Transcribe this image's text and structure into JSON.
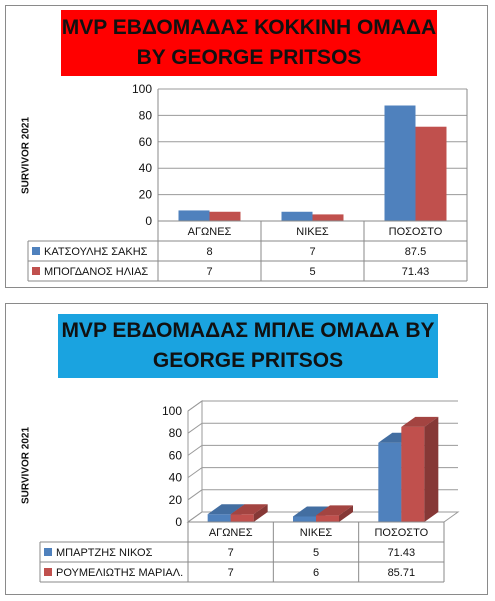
{
  "charts": [
    {
      "banner_lines": [
        "MVP ΕΒΔΟΜΑΔΑΣ ΚΟΚΚΙΝΗ ΟΜΑΔΑ",
        "BY GEORGE PRITSOS"
      ],
      "ylabel": "SURVIVOR  2021"
    },
    {
      "banner_lines": [
        "MVP ΕΒΔΟΜΑΔΑΣ ΜΠΛΕ ΟΜΑΔΑ BY",
        "GEORGE PRITSOS"
      ],
      "ylabel": "SURVIVOR  2021"
    }
  ],
  "chart_data": [
    {
      "type": "bar",
      "title": "MVP ΕΒΔΟΜΑΔΑΣ ΚΟΚΚΙΝΗ ΟΜΑΔΑ BY GEORGE PRITSOS",
      "ylabel": "SURVIVOR  2021",
      "categories": [
        "ΑΓΩΝΕΣ",
        "ΝΙΚΕΣ",
        "ΠΟΣΟΣΤΟ"
      ],
      "ylim": [
        0,
        100
      ],
      "yticks": [
        "0",
        "20",
        "40",
        "60",
        "80",
        "100"
      ],
      "grid": true,
      "legend": "data-table",
      "series": [
        {
          "name": "ΚΑΤΣΟΥΛΗΣ ΣΑΚΗΣ",
          "values": [
            8,
            7,
            87.5
          ],
          "labels": [
            "8",
            "7",
            "87.5"
          ],
          "color": "#4f81bd"
        },
        {
          "name": "ΜΠΟΓΔΑΝΟΣ ΗΛΙΑΣ",
          "values": [
            7,
            5,
            71.43
          ],
          "labels": [
            "7",
            "5",
            "71.43"
          ],
          "color": "#c0504d"
        }
      ]
    },
    {
      "type": "bar",
      "title": "MVP ΕΒΔΟΜΑΔΑΣ ΜΠΛΕ ΟΜΑΔΑ BY GEORGE PRITSOS",
      "ylabel": "SURVIVOR  2021",
      "categories": [
        "ΑΓΩΝΕΣ",
        "ΝΙΚΕΣ",
        "ΠΟΣΟΣΤΟ"
      ],
      "ylim": [
        0,
        100
      ],
      "yticks": [
        "0",
        "20",
        "40",
        "60",
        "80",
        "100"
      ],
      "grid": true,
      "style": "3d",
      "legend": "data-table",
      "series": [
        {
          "name": "ΜΠΑΡΤΖΗΣ ΝΙΚΟΣ",
          "values": [
            7,
            5,
            71.43
          ],
          "labels": [
            "7",
            "5",
            "71.43"
          ],
          "color": "#4f81bd"
        },
        {
          "name": "ΡΟΥΜΕΛΙΩΤΗΣ ΜΑΡΙΑΛ.",
          "values": [
            7,
            6,
            85.71
          ],
          "labels": [
            "7",
            "6",
            "85.71"
          ],
          "color": "#c0504d"
        }
      ]
    }
  ]
}
